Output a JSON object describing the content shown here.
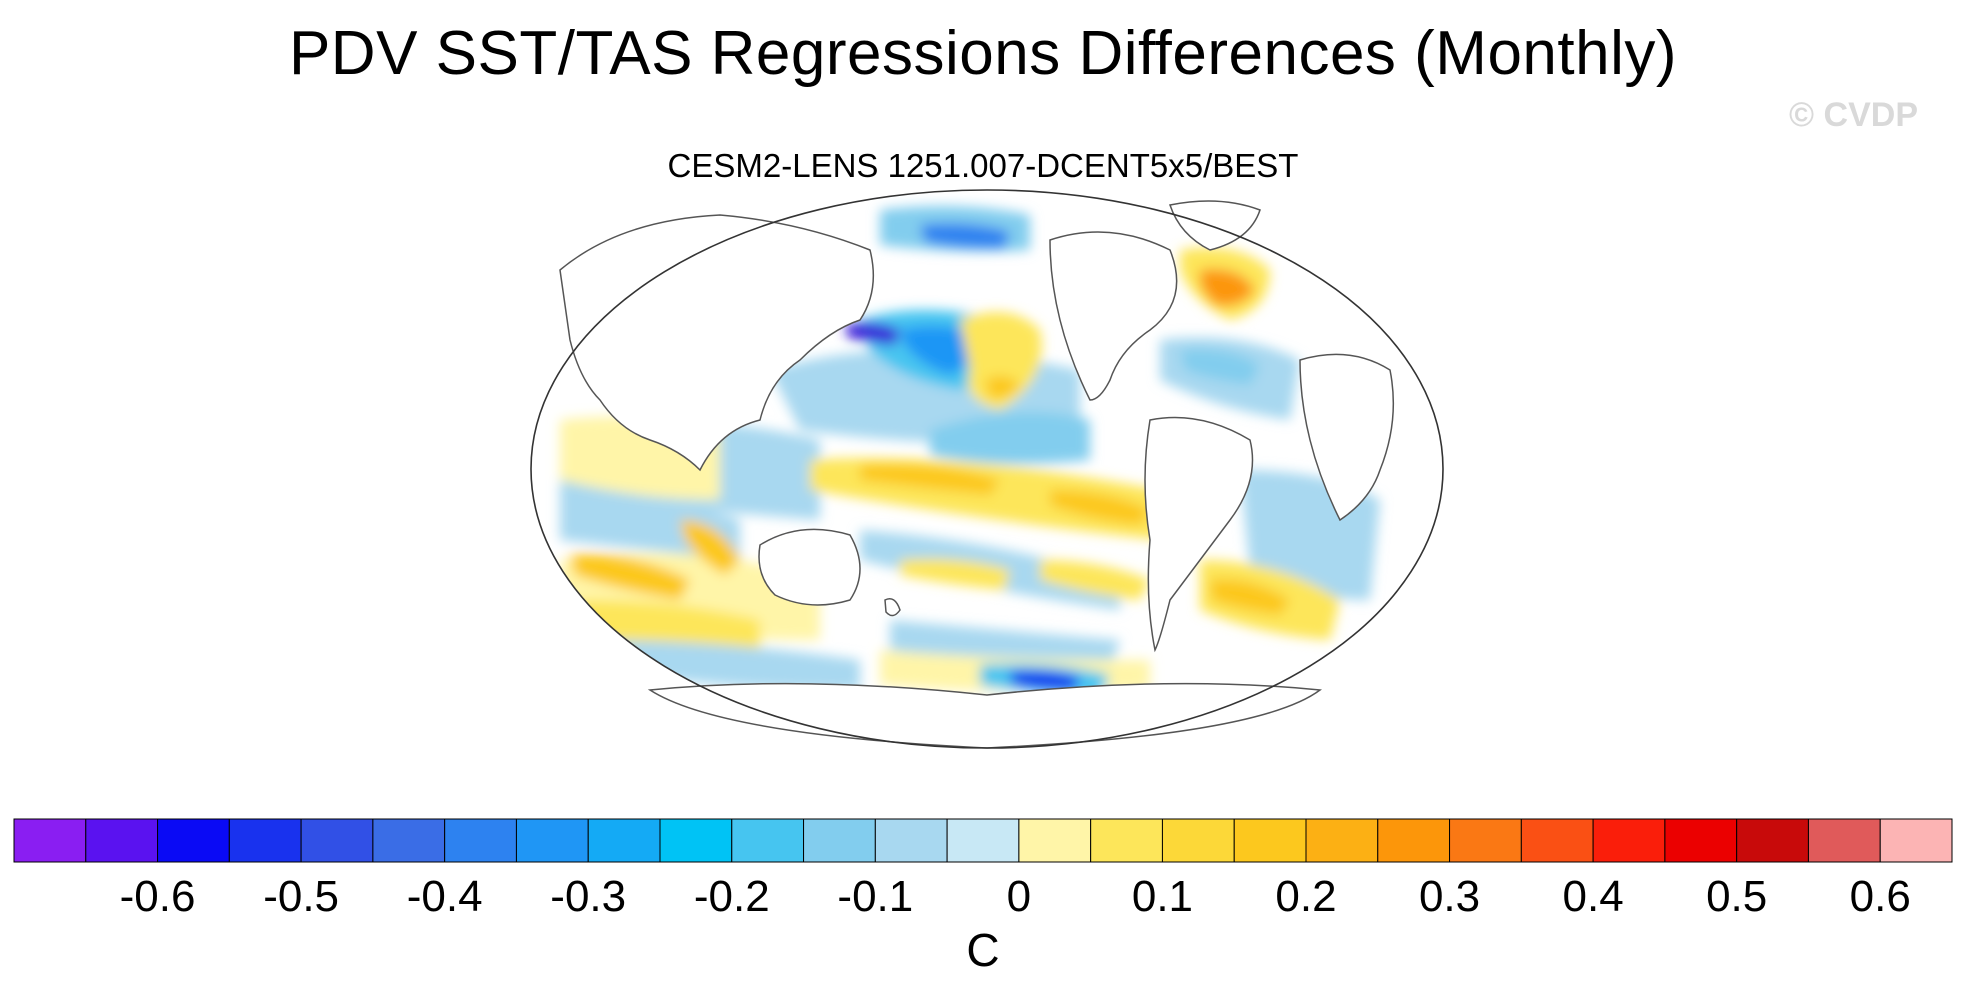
{
  "title": "PDV SST/TAS Regressions Differences (Monthly)",
  "subtitle": "CESM2-LENS 1251.007-DCENT5x5/BEST",
  "watermark": "© CVDP",
  "colorbar": {
    "unit": "C",
    "colors": [
      "#8a1ef2",
      "#5a12f0",
      "#0a0af5",
      "#1932ee",
      "#3150e6",
      "#3a6de6",
      "#2d82f0",
      "#1f96f5",
      "#14aaf5",
      "#00c3f5",
      "#46c5f0",
      "#82cdee",
      "#a8d8f0",
      "#c8e8f5",
      "#fff5a8",
      "#fde65a",
      "#fcd838",
      "#fcc81e",
      "#fcb014",
      "#fc960a",
      "#fa7814",
      "#fa5014",
      "#fa1e0a",
      "#eb0000",
      "#c80a0a",
      "#e05a5a",
      "#fcb4b4"
    ],
    "tick_labels": [
      "-0.6",
      "-0.5",
      "-0.4",
      "-0.3",
      "-0.2",
      "-0.1",
      "0",
      "0.1",
      "0.2",
      "0.3",
      "0.4",
      "0.5",
      "0.6"
    ]
  }
}
